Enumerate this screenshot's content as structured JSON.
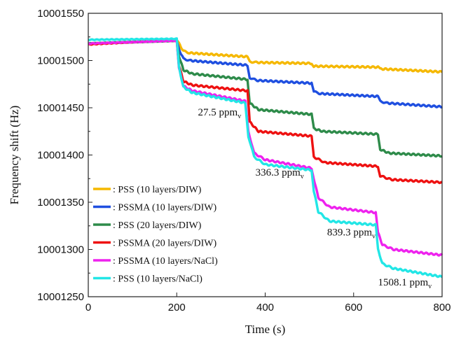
{
  "chart_data": {
    "type": "line",
    "title": "",
    "xlabel": "Time (s)",
    "ylabel": "Frequency shift (Hz)",
    "xlim": [
      0,
      800
    ],
    "ylim": [
      10001250,
      10001550
    ],
    "xticks": [
      0,
      200,
      400,
      600,
      800
    ],
    "yticks": [
      10001250,
      10001300,
      10001350,
      10001400,
      10001450,
      10001500,
      10001550
    ],
    "xtick_labels": [
      "0",
      "200",
      "400",
      "600",
      "800"
    ],
    "ytick_labels": [
      "10001250",
      "10001300",
      "10001350",
      "10001400",
      "10001450",
      "10001500",
      "10001550"
    ],
    "grid": false,
    "legend_position": "bottom-left",
    "series": [
      {
        "name": ": PSS (10 layers/DIW)",
        "color": "#f5b800",
        "x": [
          0,
          200,
          205,
          215,
          230,
          360,
          365,
          380,
          505,
          510,
          520,
          655,
          660,
          670,
          800
        ],
        "y": [
          10001518,
          10001521,
          10001518,
          10001510,
          10001508,
          10001504,
          10001499,
          10001498,
          10001497,
          10001494,
          10001494,
          10001493,
          10001491,
          10001491,
          10001488
        ]
      },
      {
        "name": ": PSSMA (10 layers/DIW)",
        "color": "#1f4fe0",
        "x": [
          0,
          200,
          205,
          215,
          230,
          360,
          365,
          380,
          505,
          510,
          525,
          655,
          660,
          675,
          800
        ],
        "y": [
          10001518,
          10001521,
          10001512,
          10001502,
          10001500,
          10001495,
          10001482,
          10001479,
          10001476,
          10001467,
          10001465,
          10001462,
          10001457,
          10001455,
          10001451
        ]
      },
      {
        "name": ": PSS (20 layers/DIW)",
        "color": "#2e8b4a",
        "x": [
          0,
          200,
          205,
          215,
          235,
          360,
          365,
          385,
          505,
          510,
          530,
          655,
          660,
          680,
          800
        ],
        "y": [
          10001518,
          10001521,
          10001505,
          10001490,
          10001486,
          10001480,
          10001455,
          10001448,
          10001443,
          10001428,
          10001425,
          10001422,
          10001406,
          10001402,
          10001399
        ]
      },
      {
        "name": ": PSSMA (20 layers/DIW)",
        "color": "#ee1111",
        "x": [
          0,
          200,
          205,
          215,
          235,
          360,
          365,
          385,
          505,
          510,
          535,
          655,
          660,
          685,
          800
        ],
        "y": [
          10001517,
          10001522,
          10001495,
          10001478,
          10001474,
          10001468,
          10001435,
          10001425,
          10001420,
          10001398,
          10001392,
          10001388,
          10001378,
          10001374,
          10001371
        ]
      },
      {
        "name": ": PSSMA (10 layers/NaCl)",
        "color": "#ee22ee",
        "x": [
          0,
          200,
          205,
          215,
          235,
          355,
          362,
          375,
          400,
          505,
          510,
          520,
          545,
          650,
          655,
          665,
          690,
          800
        ],
        "y": [
          10001518,
          10001521,
          10001492,
          10001473,
          10001468,
          10001457,
          10001425,
          10001402,
          10001395,
          10001386,
          10001375,
          10001355,
          10001345,
          10001339,
          10001318,
          10001305,
          10001300,
          10001294
        ]
      },
      {
        "name": ": PSS (10 layers/NaCl)",
        "color": "#22e6e6",
        "x": [
          0,
          200,
          205,
          215,
          235,
          355,
          362,
          375,
          400,
          505,
          510,
          520,
          545,
          650,
          655,
          665,
          690,
          800
        ],
        "y": [
          10001522,
          10001523,
          10001493,
          10001472,
          10001466,
          10001455,
          10001420,
          10001398,
          10001390,
          10001384,
          10001362,
          10001340,
          10001330,
          10001326,
          10001300,
          10001285,
          10001280,
          10001271
        ]
      }
    ],
    "annotations": [
      {
        "text": "27.5 ppm",
        "sub": "v",
        "x": 248,
        "y": 10001442
      },
      {
        "text": "336.3 ppm",
        "sub": "v",
        "x": 378,
        "y": 10001378
      },
      {
        "text": "839.3 ppm",
        "sub": "v",
        "x": 540,
        "y": 10001315
      },
      {
        "text": "1508.1 ppm",
        "sub": "v",
        "x": 655,
        "y": 10001262
      }
    ]
  }
}
